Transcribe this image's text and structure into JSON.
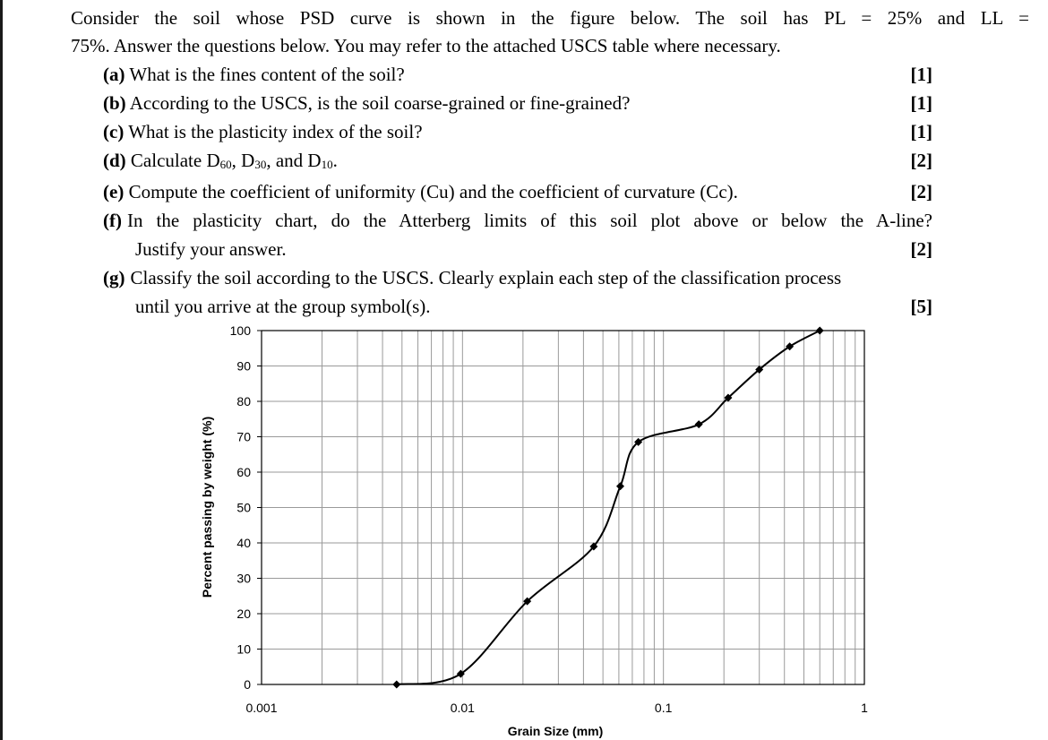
{
  "problem": {
    "intro_line1": "Consider the soil whose PSD curve is shown in the figure below. The soil has PL = 25% and LL =",
    "intro_line2": "75%. Answer the questions below. You may refer to the attached USCS table where necessary.",
    "questions": [
      {
        "label": "(a)",
        "text": "What is the fines content of the soil?",
        "marks": "[1]"
      },
      {
        "label": "(b)",
        "text": "According to the USCS, is the soil coarse-grained or fine-grained?",
        "marks": "[1]"
      },
      {
        "label": "(c)",
        "text": "What is the plasticity index of the soil?",
        "marks": "[1]"
      },
      {
        "label": "(d)",
        "text_pre": "Calculate D",
        "d60": "60",
        "sep1": ", D",
        "d30": "30",
        "sep2": ", and D",
        "d10": "10",
        "text_post": ".",
        "marks": "[2]"
      },
      {
        "label": "(e)",
        "text": "Compute the coefficient of uniformity (Cu) and the coefficient of curvature (Cc).",
        "marks": "[2]"
      },
      {
        "label": "(f)",
        "text_line1": "In the plasticity chart, do the Atterberg limits of this soil plot above or below the A-line?",
        "text_line2": "Justify your answer.",
        "marks": "[2]"
      },
      {
        "label": "(g)",
        "text_line1": "Classify the soil according to the USCS. Clearly explain each step of the classification process",
        "text_line2": "until you arrive at the group symbol(s).",
        "marks": "[5]"
      }
    ]
  },
  "chart_data": {
    "type": "line",
    "xlabel": "Grain Size (mm)",
    "ylabel": "Percent passing by weight (%)",
    "x_scale": "log",
    "xlim": [
      0.001,
      1
    ],
    "ylim": [
      0,
      100
    ],
    "x_ticks": [
      "0.001",
      "0.01",
      "0.1",
      "1"
    ],
    "y_ticks": [
      "0",
      "10",
      "20",
      "30",
      "40",
      "50",
      "60",
      "70",
      "80",
      "90",
      "100"
    ],
    "grid": true,
    "series": [
      {
        "x": [
          0.0047,
          0.0098,
          0.021,
          0.045,
          0.061,
          0.075,
          0.15,
          0.21,
          0.3,
          0.425,
          0.6
        ],
        "y": [
          0,
          3,
          23.5,
          39,
          56,
          68.5,
          73.5,
          81,
          89,
          95.5,
          100
        ],
        "color": "#000000"
      }
    ]
  }
}
